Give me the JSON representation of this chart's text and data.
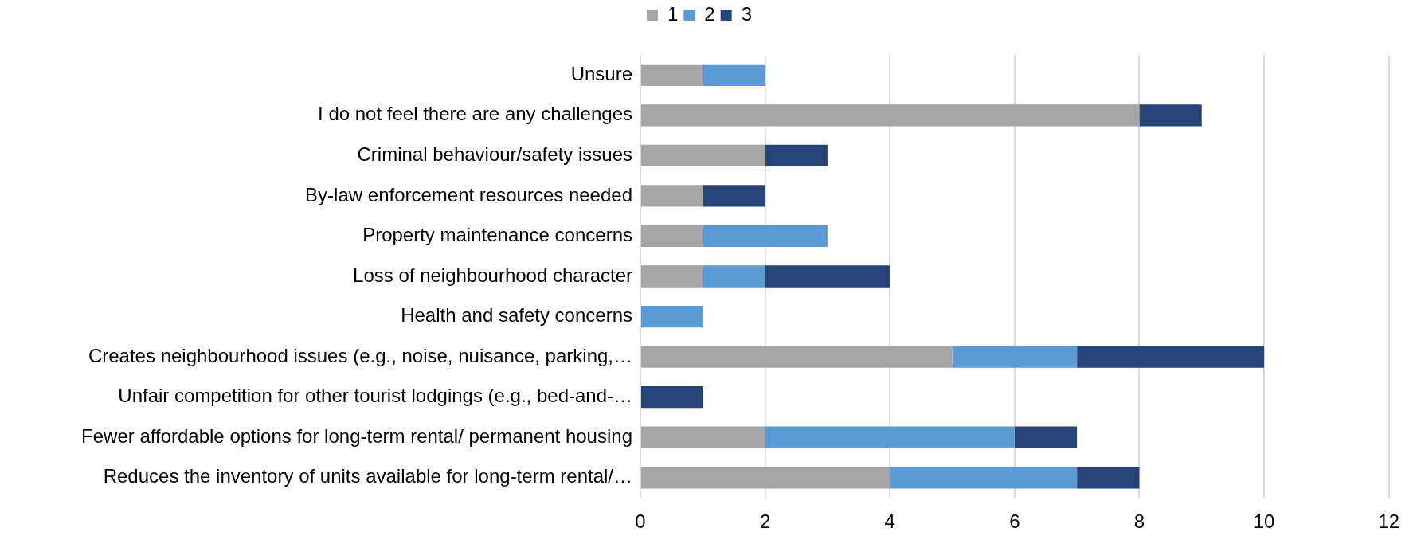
{
  "chart_data": {
    "type": "bar",
    "orientation": "horizontal",
    "stacked": true,
    "categories": [
      "Unsure",
      "I do not feel there are any challenges",
      "Criminal behaviour/safety issues",
      "By-law enforcement resources needed",
      "Property maintenance concerns",
      "Loss of neighbourhood character",
      "Health and safety concerns",
      "Creates neighbourhood issues (e.g., noise, nuisance, parking,…",
      "Unfair competition for other tourist lodgings (e.g., bed-and-…",
      "Fewer affordable options for long-term rental/ permanent housing",
      "Reduces the inventory of units available for long-term rental/…"
    ],
    "series": [
      {
        "name": "1",
        "color": "#a5a5a5",
        "values": [
          1,
          8,
          2,
          1,
          1,
          1,
          null,
          5,
          null,
          2,
          4
        ]
      },
      {
        "name": "2",
        "color": "#5b9bd5",
        "values": [
          1,
          null,
          null,
          null,
          2,
          1,
          1,
          2,
          null,
          4,
          3
        ]
      },
      {
        "name": "3",
        "color": "#264478",
        "values": [
          null,
          1,
          1,
          1,
          null,
          2,
          null,
          3,
          1,
          1,
          1
        ]
      }
    ],
    "xlim": [
      0,
      12
    ],
    "xticks": [
      0,
      2,
      4,
      6,
      8,
      10,
      12
    ],
    "grid": "x",
    "legend": "top"
  }
}
